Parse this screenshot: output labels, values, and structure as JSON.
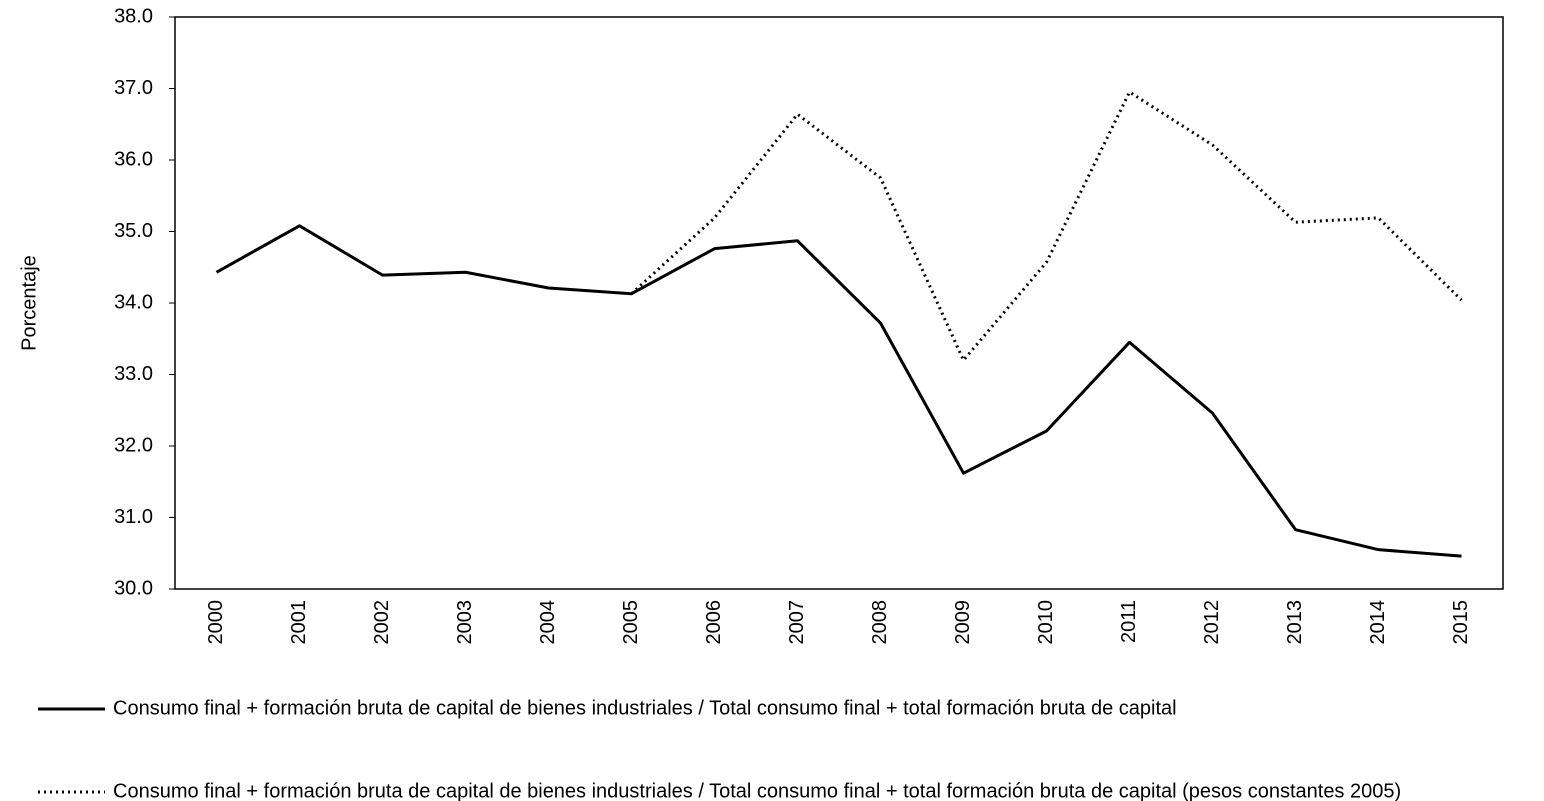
{
  "chart_data": {
    "type": "line",
    "y_label": "Porcentaje",
    "categories": [
      "2000",
      "2001",
      "2002",
      "2003",
      "2004",
      "2005",
      "2006",
      "2007",
      "2008",
      "2009",
      "2010",
      "2011",
      "2012",
      "2013",
      "2014",
      "2015"
    ],
    "series": [
      {
        "name": "Consumo final + formación bruta de capital de bienes industriales / Total consumo final + total formación bruta de capital",
        "color": "#000000",
        "style": "solid",
        "values": [
          34.43,
          35.08,
          34.39,
          34.43,
          34.21,
          34.13,
          34.76,
          34.87,
          33.72,
          31.62,
          32.21,
          33.45,
          32.46,
          30.83,
          30.55,
          30.46
        ]
      },
      {
        "name": "Consumo final + formación bruta de capital de bienes industriales  / Total consumo final + total formación bruta de capital (pesos constantes 2005)",
        "color": "#000000",
        "style": "dotted",
        "values": [
          null,
          null,
          null,
          null,
          null,
          34.13,
          35.19,
          36.64,
          35.75,
          33.2,
          34.57,
          36.95,
          36.21,
          35.13,
          35.19,
          34.04
        ]
      }
    ],
    "ylim": [
      30,
      38
    ],
    "yticks": [
      {
        "value": 30,
        "label": "30.0"
      },
      {
        "value": 31,
        "label": "31.0"
      },
      {
        "value": 32,
        "label": "32.0"
      },
      {
        "value": 33,
        "label": "33.0"
      },
      {
        "value": 34,
        "label": "34.0"
      },
      {
        "value": 35,
        "label": "35.0"
      },
      {
        "value": 36,
        "label": "36.0"
      },
      {
        "value": 37,
        "label": "37.0"
      },
      {
        "value": 38,
        "label": "38.0"
      }
    ],
    "grid": false,
    "legend": "bottom"
  }
}
